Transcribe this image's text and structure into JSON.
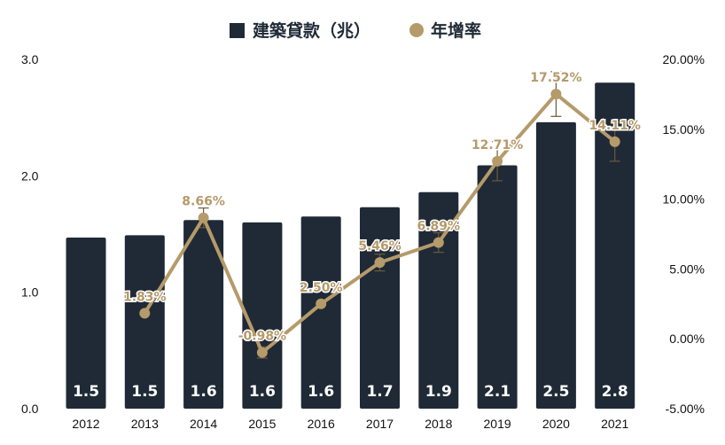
{
  "chart_data": {
    "type": "bar",
    "categories": [
      "2012",
      "2013",
      "2014",
      "2015",
      "2016",
      "2017",
      "2018",
      "2019",
      "2020",
      "2021"
    ],
    "series": [
      {
        "name": "建築貸款（兆）",
        "type": "bar",
        "axis": "left",
        "values": [
          1.47,
          1.49,
          1.62,
          1.6,
          1.65,
          1.73,
          1.86,
          2.09,
          2.46,
          2.8
        ],
        "labels": [
          "1.5",
          "1.5",
          "1.6",
          "1.6",
          "1.6",
          "1.7",
          "1.9",
          "2.1",
          "2.5",
          "2.8"
        ],
        "color": "#1f2a36"
      },
      {
        "name": "年增率",
        "type": "line",
        "axis": "right",
        "x": [
          "2013",
          "2014",
          "2015",
          "2016",
          "2017",
          "2018",
          "2019",
          "2020",
          "2021"
        ],
        "values": [
          1.83,
          8.66,
          -0.98,
          2.5,
          5.46,
          6.89,
          12.71,
          17.52,
          14.11
        ],
        "labels": [
          "1.83%",
          "8.66%",
          "-0.98%",
          "2.50%",
          "5.46%",
          "6.89%",
          "12.71%",
          "17.52%",
          "14.11%"
        ],
        "error": [
          0.0,
          0.7,
          0.4,
          0.0,
          0.6,
          0.7,
          1.4,
          1.6,
          1.4
        ],
        "color": "#b59a6a"
      }
    ],
    "y_left": {
      "ylim": [
        0,
        3.0
      ],
      "ticks": [
        "0.0",
        "1.0",
        "2.0",
        "3.0"
      ],
      "tick_values": [
        0,
        1,
        2,
        3
      ]
    },
    "y_right": {
      "ylim": [
        -5,
        20
      ],
      "ticks": [
        "-5.00%",
        "0.00%",
        "5.00%",
        "10.00%",
        "15.00%",
        "20.00%"
      ],
      "tick_values": [
        -5,
        0,
        5,
        10,
        15,
        20
      ]
    },
    "legend_position": "top-center",
    "grid": false
  }
}
